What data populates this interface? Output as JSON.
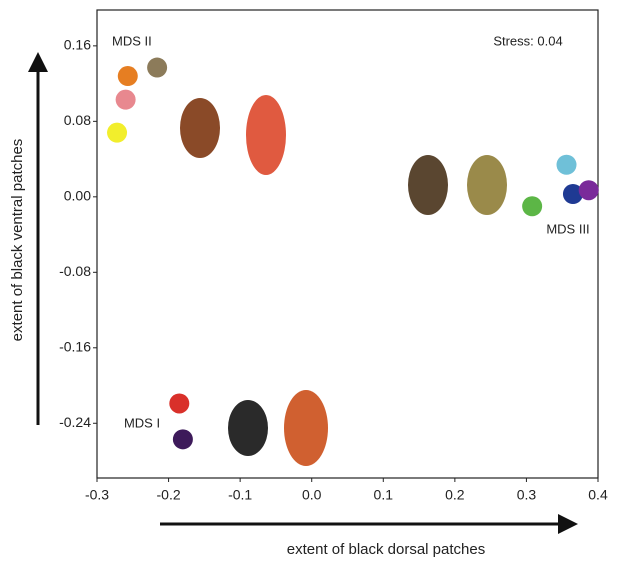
{
  "chart_data": {
    "type": "scatter",
    "xlabel": "extent of black dorsal patches",
    "ylabel": "extent of black ventral patches",
    "annotations": [
      "MDS II",
      "MDS III",
      "MDS I",
      "Stress: 0.04"
    ],
    "x": [
      -0.257,
      -0.216,
      -0.26,
      -0.272,
      0.356,
      0.365,
      0.387,
      0.308,
      -0.185,
      -0.18
    ],
    "values": [
      0.128,
      0.137,
      0.103,
      0.068,
      0.034,
      0.003,
      0.007,
      -0.01,
      -0.219,
      -0.257
    ],
    "colors": [
      "#e67e22",
      "#8c7b5a",
      "#e8888f",
      "#f2ee2c",
      "#6fc0d8",
      "#1f3a93",
      "#7a2a9a",
      "#5cb646",
      "#d9302a",
      "#3d1a5a"
    ],
    "xlim": [
      -0.3,
      0.4
    ],
    "ylim": [
      -0.298,
      0.198
    ],
    "xticks": [
      -0.3,
      -0.2,
      -0.1,
      {
        "value": 0,
        "label": "0.0"
      },
      0.1,
      0.2,
      0.3,
      0.4
    ],
    "yticks": [
      0.16,
      0.08,
      {
        "value": 0,
        "label": "0.00"
      },
      -0.08,
      -0.16,
      -0.24
    ]
  }
}
